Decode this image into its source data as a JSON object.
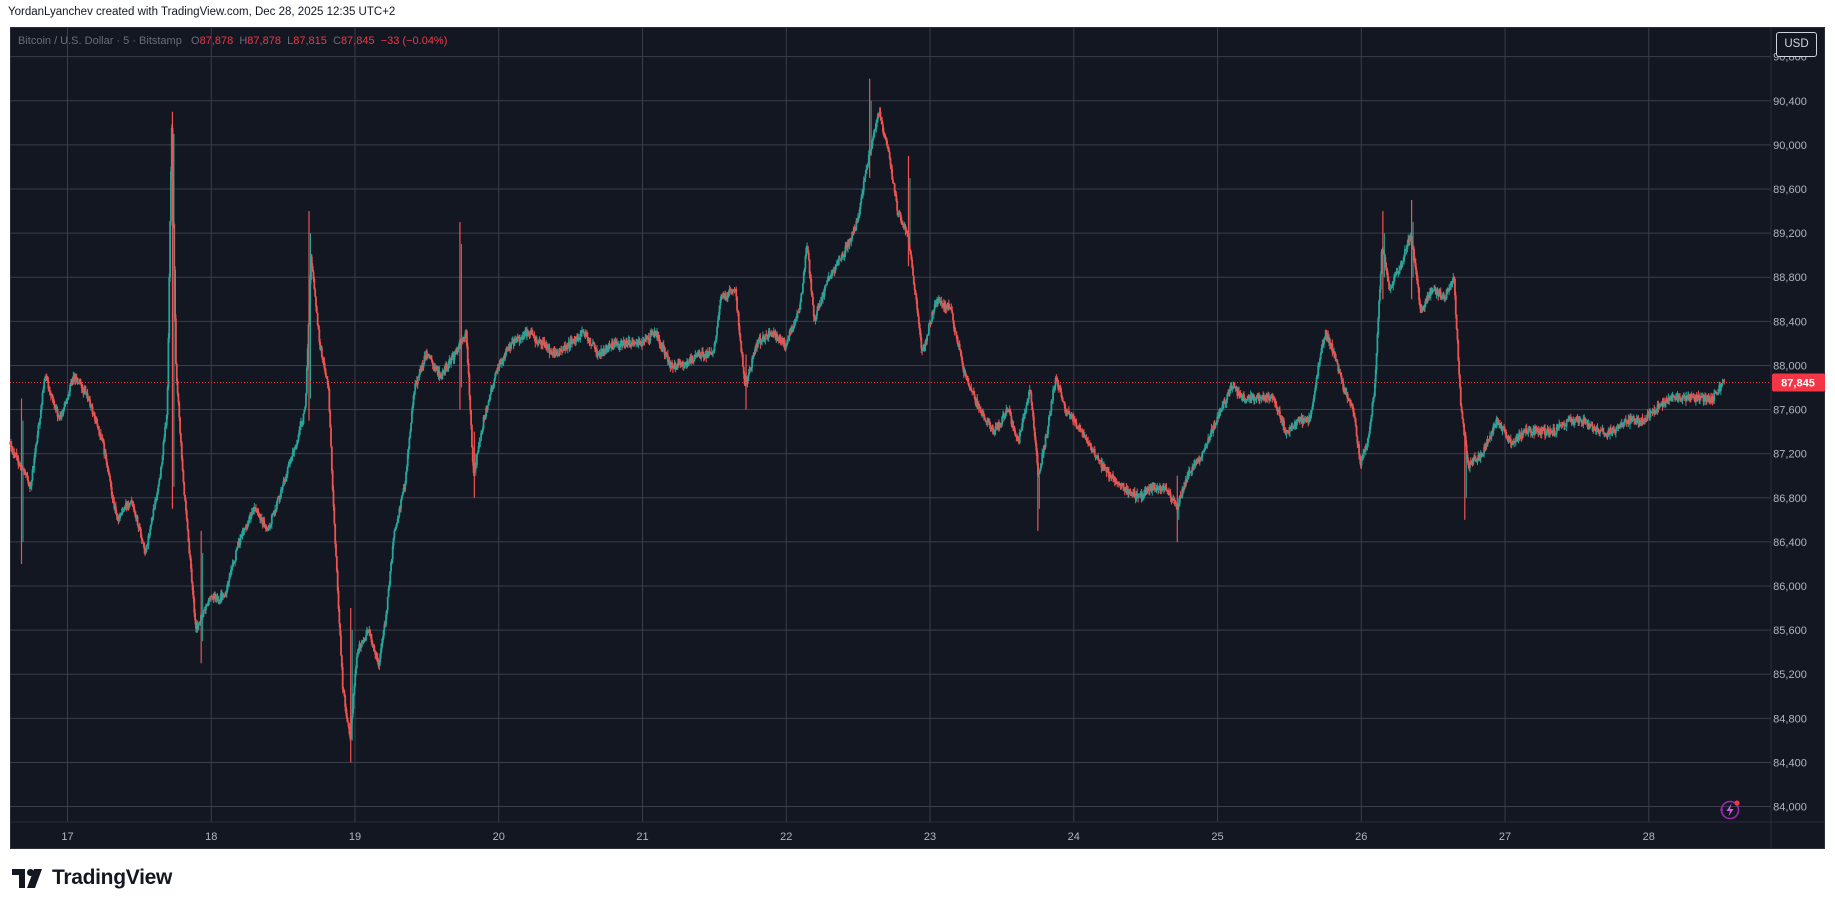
{
  "header": {
    "attribution": "YordanLyanchev created with TradingView.com, Dec 28, 2025 12:35 UTC+2"
  },
  "legend": {
    "symbol": "Bitcoin / U.S. Dollar · 5 · Bitstamp",
    "o_key": "O",
    "o_val": "87,878",
    "h_key": "H",
    "h_val": "87,878",
    "l_key": "L",
    "l_val": "87,815",
    "c_key": "C",
    "c_val": "87,845",
    "change": "−33 (−0.04%)"
  },
  "currency_button": "USD",
  "price_tag": "87,845",
  "logo_text": "TradingView",
  "icons": [
    "tradingview-logo-icon",
    "lightning-icon"
  ],
  "colors": {
    "background": "#131722",
    "grid": "#3a3e4a",
    "up": "#26a69a",
    "down": "#ef5350",
    "axis_text": "#b2b5be",
    "last_price": "#f23645"
  },
  "chart_data": {
    "type": "candlestick",
    "symbol": "BTC/USD",
    "interval": "5",
    "exchange": "Bitstamp",
    "x_ticks": [
      "17",
      "18",
      "19",
      "20",
      "21",
      "22",
      "23",
      "24",
      "25",
      "26",
      "27",
      "28"
    ],
    "y_ticks": [
      84000,
      84400,
      84800,
      85200,
      85600,
      86000,
      86400,
      86800,
      87200,
      87600,
      88000,
      88400,
      88800,
      89200,
      89600,
      90000,
      90400,
      90800
    ],
    "y_tick_labels": [
      "84,000",
      "84,400",
      "84,800",
      "85,200",
      "85,600",
      "86,000",
      "86,400",
      "86,800",
      "87,200",
      "87,600",
      "88,000",
      "88,400",
      "88,800",
      "89,200",
      "89,600",
      "90,000",
      "90,400",
      "90,800"
    ],
    "ylim": [
      83860,
      91060
    ],
    "xlim_days": [
      16.6,
      28.85
    ],
    "last_price": 87845,
    "last_price_line": "dotted",
    "grid": true,
    "path_points": [
      [
        16.6,
        87300
      ],
      [
        16.75,
        86900
      ],
      [
        16.85,
        87900
      ],
      [
        16.95,
        87500
      ],
      [
        17.05,
        87900
      ],
      [
        17.15,
        87700
      ],
      [
        17.25,
        87300
      ],
      [
        17.35,
        86600
      ],
      [
        17.45,
        86800
      ],
      [
        17.55,
        86300
      ],
      [
        17.65,
        87000
      ],
      [
        17.7,
        87600
      ],
      [
        17.73,
        90200
      ],
      [
        17.76,
        88000
      ],
      [
        17.82,
        86800
      ],
      [
        17.9,
        85600
      ],
      [
        18.0,
        85900
      ],
      [
        18.1,
        85900
      ],
      [
        18.2,
        86400
      ],
      [
        18.3,
        86700
      ],
      [
        18.4,
        86500
      ],
      [
        18.5,
        86900
      ],
      [
        18.6,
        87300
      ],
      [
        18.66,
        87600
      ],
      [
        18.7,
        89000
      ],
      [
        18.76,
        88200
      ],
      [
        18.82,
        87800
      ],
      [
        18.86,
        86600
      ],
      [
        18.92,
        85100
      ],
      [
        18.97,
        84600
      ],
      [
        19.02,
        85400
      ],
      [
        19.1,
        85600
      ],
      [
        19.17,
        85300
      ],
      [
        19.22,
        85700
      ],
      [
        19.28,
        86500
      ],
      [
        19.35,
        86900
      ],
      [
        19.42,
        87800
      ],
      [
        19.5,
        88100
      ],
      [
        19.6,
        87900
      ],
      [
        19.7,
        88100
      ],
      [
        19.78,
        88300
      ],
      [
        19.83,
        87000
      ],
      [
        19.9,
        87500
      ],
      [
        20.0,
        88000
      ],
      [
        20.1,
        88200
      ],
      [
        20.2,
        88300
      ],
      [
        20.3,
        88200
      ],
      [
        20.4,
        88100
      ],
      [
        20.5,
        88200
      ],
      [
        20.6,
        88300
      ],
      [
        20.7,
        88100
      ],
      [
        20.8,
        88200
      ],
      [
        20.9,
        88200
      ],
      [
        21.0,
        88200
      ],
      [
        21.1,
        88300
      ],
      [
        21.2,
        88000
      ],
      [
        21.3,
        88000
      ],
      [
        21.4,
        88100
      ],
      [
        21.5,
        88100
      ],
      [
        21.55,
        88600
      ],
      [
        21.65,
        88700
      ],
      [
        21.72,
        87800
      ],
      [
        21.8,
        88200
      ],
      [
        21.9,
        88300
      ],
      [
        22.0,
        88200
      ],
      [
        22.1,
        88500
      ],
      [
        22.15,
        89100
      ],
      [
        22.2,
        88400
      ],
      [
        22.3,
        88800
      ],
      [
        22.4,
        89000
      ],
      [
        22.5,
        89300
      ],
      [
        22.55,
        89700
      ],
      [
        22.6,
        90000
      ],
      [
        22.65,
        90300
      ],
      [
        22.72,
        89900
      ],
      [
        22.78,
        89400
      ],
      [
        22.85,
        89200
      ],
      [
        22.9,
        88700
      ],
      [
        22.95,
        88100
      ],
      [
        23.05,
        88600
      ],
      [
        23.15,
        88500
      ],
      [
        23.25,
        87900
      ],
      [
        23.35,
        87600
      ],
      [
        23.45,
        87400
      ],
      [
        23.55,
        87600
      ],
      [
        23.62,
        87300
      ],
      [
        23.7,
        87800
      ],
      [
        23.76,
        87000
      ],
      [
        23.82,
        87400
      ],
      [
        23.88,
        87900
      ],
      [
        23.95,
        87600
      ],
      [
        24.05,
        87400
      ],
      [
        24.15,
        87200
      ],
      [
        24.25,
        87000
      ],
      [
        24.35,
        86900
      ],
      [
        24.45,
        86800
      ],
      [
        24.55,
        86900
      ],
      [
        24.65,
        86900
      ],
      [
        24.72,
        86700
      ],
      [
        24.8,
        87000
      ],
      [
        24.9,
        87200
      ],
      [
        25.0,
        87500
      ],
      [
        25.1,
        87800
      ],
      [
        25.2,
        87700
      ],
      [
        25.3,
        87700
      ],
      [
        25.4,
        87700
      ],
      [
        25.48,
        87400
      ],
      [
        25.56,
        87500
      ],
      [
        25.65,
        87500
      ],
      [
        25.72,
        88100
      ],
      [
        25.76,
        88300
      ],
      [
        25.82,
        88100
      ],
      [
        25.88,
        87800
      ],
      [
        25.95,
        87600
      ],
      [
        26.0,
        87100
      ],
      [
        26.05,
        87300
      ],
      [
        26.1,
        87800
      ],
      [
        26.15,
        89100
      ],
      [
        26.2,
        88700
      ],
      [
        26.28,
        88900
      ],
      [
        26.35,
        89200
      ],
      [
        26.42,
        88500
      ],
      [
        26.5,
        88700
      ],
      [
        26.58,
        88600
      ],
      [
        26.65,
        88800
      ],
      [
        26.7,
        87600
      ],
      [
        26.75,
        87100
      ],
      [
        26.85,
        87200
      ],
      [
        26.95,
        87500
      ],
      [
        27.05,
        87300
      ],
      [
        27.15,
        87400
      ],
      [
        27.25,
        87400
      ],
      [
        27.35,
        87400
      ],
      [
        27.45,
        87500
      ],
      [
        27.55,
        87500
      ],
      [
        27.65,
        87400
      ],
      [
        27.75,
        87400
      ],
      [
        27.85,
        87500
      ],
      [
        27.95,
        87500
      ],
      [
        28.05,
        87600
      ],
      [
        28.15,
        87700
      ],
      [
        28.25,
        87700
      ],
      [
        28.35,
        87700
      ],
      [
        28.45,
        87700
      ],
      [
        28.53,
        87850
      ]
    ],
    "spikes": [
      [
        16.68,
        86200,
        87700
      ],
      [
        17.73,
        86700,
        90300
      ],
      [
        17.93,
        85300,
        86500
      ],
      [
        18.68,
        87500,
        89400
      ],
      [
        18.97,
        84400,
        85800
      ],
      [
        19.73,
        87600,
        89300
      ],
      [
        19.83,
        86800,
        87400
      ],
      [
        21.72,
        87600,
        88100
      ],
      [
        22.58,
        89700,
        90600
      ],
      [
        22.85,
        88900,
        89900
      ],
      [
        23.75,
        86500,
        87200
      ],
      [
        24.72,
        86400,
        87000
      ],
      [
        26.15,
        88600,
        89400
      ],
      [
        26.35,
        88600,
        89500
      ],
      [
        26.72,
        86600,
        87400
      ]
    ]
  }
}
